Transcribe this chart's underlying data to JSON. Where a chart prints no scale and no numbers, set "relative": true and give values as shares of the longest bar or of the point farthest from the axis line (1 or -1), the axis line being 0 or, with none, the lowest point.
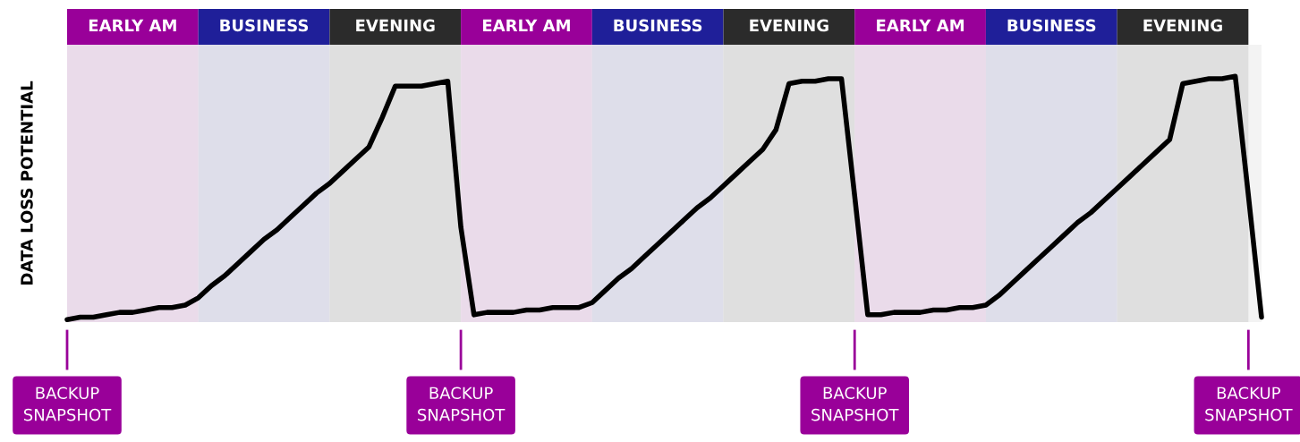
{
  "chart_data": {
    "type": "line",
    "relative": true,
    "ylabel": "DATA LOSS POTENTIAL",
    "legend": false,
    "marker": "none",
    "line_style": "solid",
    "categories": [
      null,
      null,
      null,
      null,
      null,
      null,
      null,
      null,
      null,
      null,
      null,
      null,
      null,
      null,
      null,
      null,
      null,
      null,
      null,
      null,
      null,
      null,
      null,
      null,
      null,
      null,
      null,
      null,
      null,
      null,
      null,
      null,
      null,
      null,
      null,
      null,
      null,
      null,
      null,
      null,
      null,
      null,
      null,
      null,
      null,
      null,
      null,
      null,
      null,
      null,
      null,
      null,
      null,
      null,
      null,
      null,
      null,
      null,
      null,
      null,
      null,
      null,
      null,
      null,
      null,
      null,
      null,
      null,
      null,
      null,
      null,
      null,
      null,
      null,
      null,
      null,
      null,
      null,
      null,
      null,
      null,
      null,
      null,
      null,
      null,
      null,
      null,
      null,
      null,
      null,
      null,
      null
    ],
    "series": [
      {
        "color": "#000000",
        "values": [
          0,
          0.01,
          0.01,
          0.02,
          0.03,
          0.03,
          0.04,
          0.05,
          0.05,
          0.06,
          0.09,
          0.14,
          0.18,
          0.23,
          0.28,
          0.33,
          0.37,
          0.42,
          0.47,
          0.52,
          0.56,
          0.61,
          0.66,
          0.71,
          0.83,
          0.96,
          0.96,
          0.96,
          0.97,
          0.98,
          0.38,
          0.02,
          0.03,
          0.03,
          0.03,
          0.04,
          0.04,
          0.05,
          0.05,
          0.05,
          0.07,
          0.12,
          0.17,
          0.21,
          0.26,
          0.31,
          0.36,
          0.41,
          0.46,
          0.5,
          0.55,
          0.6,
          0.65,
          0.7,
          0.78,
          0.97,
          0.98,
          0.98,
          0.99,
          0.99,
          0.51,
          0.02,
          0.02,
          0.03,
          0.03,
          0.03,
          0.04,
          0.04,
          0.05,
          0.05,
          0.06,
          0.1,
          0.15,
          0.2,
          0.25,
          0.3,
          0.35,
          0.4,
          0.44,
          0.49,
          0.54,
          0.59,
          0.64,
          0.69,
          0.74,
          0.97,
          0.98,
          0.99,
          0.99,
          1,
          0.51,
          0.01
        ]
      }
    ],
    "annotations": [
      "EARLY AM",
      "BUSINESS",
      "EVENING",
      "EARLY AM",
      "BUSINESS",
      "EVENING",
      "EARLY AM",
      "BUSINESS",
      "EVENING",
      "BACKUP\nSNAPSHOT",
      "BACKUP\nSNAPSHOT",
      "BACKUP\nSNAPSHOT",
      "BACKUP\nSNAPSHOT"
    ]
  }
}
